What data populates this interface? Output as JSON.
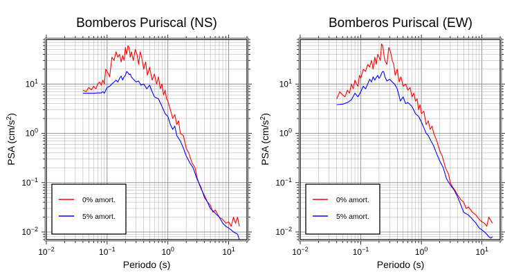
{
  "chart_data": [
    {
      "type": "line",
      "title": "Bomberos Puriscal (NS)",
      "xlabel": "Periodo (s)",
      "ylabel": "PSA (cm/s2)",
      "ylabel_parts": {
        "main": "PSA (cm/s",
        "sup": "2",
        "close": ")"
      },
      "xscale": "log",
      "yscale": "log",
      "xlim": [
        0.01,
        20
      ],
      "ylim": [
        0.007,
        80
      ],
      "x_ticks": [
        {
          "base": "10",
          "exp": "−2"
        },
        {
          "base": "10",
          "exp": "−1"
        },
        {
          "base": "10",
          "exp": "0"
        },
        {
          "base": "10",
          "exp": "1"
        }
      ],
      "y_ticks": [
        {
          "base": "10",
          "exp": "−2"
        },
        {
          "base": "10",
          "exp": "−1"
        },
        {
          "base": "10",
          "exp": "0"
        },
        {
          "base": "10",
          "exp": "1"
        }
      ],
      "grid": true,
      "legend_position": "bottom-left",
      "series": [
        {
          "name": "0% amort.",
          "color": "#ff0000",
          "x": [
            0.04,
            0.045,
            0.05,
            0.055,
            0.06,
            0.065,
            0.07,
            0.075,
            0.08,
            0.085,
            0.09,
            0.095,
            0.1,
            0.11,
            0.12,
            0.13,
            0.14,
            0.15,
            0.16,
            0.17,
            0.18,
            0.19,
            0.2,
            0.21,
            0.22,
            0.23,
            0.24,
            0.25,
            0.27,
            0.29,
            0.31,
            0.33,
            0.35,
            0.37,
            0.4,
            0.43,
            0.46,
            0.5,
            0.55,
            0.6,
            0.65,
            0.7,
            0.75,
            0.8,
            0.85,
            0.9,
            0.95,
            1.0,
            1.1,
            1.2,
            1.3,
            1.4,
            1.5,
            1.6,
            1.8,
            2.0,
            2.2,
            2.5,
            2.8,
            3.0,
            3.3,
            3.6,
            4.0,
            4.5,
            5.0,
            5.5,
            6.0,
            7.0,
            8.0,
            9.0,
            10.0,
            11.0,
            12.0,
            13.0,
            14.0,
            15.0
          ],
          "y": [
            7.5,
            7.0,
            8.5,
            7.6,
            9.0,
            8.0,
            10.0,
            11.0,
            9.5,
            12.0,
            10.0,
            20.0,
            18.0,
            14.0,
            35.0,
            30.0,
            45.0,
            35.0,
            40.0,
            28.0,
            38.0,
            30.0,
            55.0,
            40.0,
            60.0,
            55.0,
            35.0,
            45.0,
            30.0,
            50.0,
            40.0,
            25.0,
            45.0,
            35.0,
            20.0,
            28.0,
            15.0,
            22.0,
            12.0,
            16.0,
            10.0,
            14.0,
            8.0,
            10.0,
            6.0,
            7.5,
            5.0,
            4.5,
            3.0,
            2.0,
            2.4,
            1.5,
            1.8,
            1.0,
            0.9,
            0.5,
            0.4,
            0.25,
            0.2,
            0.13,
            0.09,
            0.07,
            0.055,
            0.04,
            0.035,
            0.025,
            0.028,
            0.02,
            0.018,
            0.015,
            0.016,
            0.013,
            0.02,
            0.015,
            0.02,
            0.013
          ]
        },
        {
          "name": "5% amort.",
          "color": "#0000ff",
          "x": [
            0.04,
            0.05,
            0.06,
            0.07,
            0.08,
            0.085,
            0.09,
            0.1,
            0.11,
            0.12,
            0.13,
            0.14,
            0.15,
            0.16,
            0.17,
            0.18,
            0.19,
            0.2,
            0.21,
            0.22,
            0.23,
            0.24,
            0.25,
            0.27,
            0.3,
            0.33,
            0.36,
            0.4,
            0.45,
            0.5,
            0.55,
            0.6,
            0.7,
            0.8,
            0.9,
            1.0,
            1.1,
            1.2,
            1.3,
            1.4,
            1.6,
            1.8,
            2.0,
            2.3,
            2.6,
            3.0,
            3.5,
            4.0,
            4.5,
            5.0,
            6.0,
            7.0,
            8.0,
            9.0,
            10.0,
            11.0,
            12.0,
            13.0,
            14.0,
            15.0
          ],
          "y": [
            6.5,
            6.5,
            6.5,
            6.6,
            6.6,
            7.0,
            6.5,
            8.5,
            9.0,
            10.0,
            11.0,
            12.0,
            11.0,
            13.0,
            14.5,
            12.0,
            14.0,
            15.0,
            18.0,
            17.0,
            15.5,
            16.0,
            14.0,
            12.5,
            11.0,
            11.5,
            9.5,
            10.0,
            8.0,
            9.5,
            7.0,
            5.5,
            5.0,
            3.5,
            2.5,
            2.2,
            1.5,
            1.2,
            1.4,
            0.9,
            0.7,
            0.5,
            0.35,
            0.25,
            0.2,
            0.12,
            0.08,
            0.05,
            0.04,
            0.03,
            0.024,
            0.02,
            0.015,
            0.013,
            0.012,
            0.011,
            0.01,
            0.0095,
            0.009,
            0.007
          ]
        }
      ]
    },
    {
      "type": "line",
      "title": "Bomberos Puriscal (EW)",
      "xlabel": "Periodo (s)",
      "ylabel": "PSA (cm/s2)",
      "ylabel_parts": {
        "main": "PSA (cm/s",
        "sup": "2",
        "close": ")"
      },
      "xscale": "log",
      "yscale": "log",
      "xlim": [
        0.01,
        20
      ],
      "ylim": [
        0.007,
        80
      ],
      "x_ticks": [
        {
          "base": "10",
          "exp": "−2"
        },
        {
          "base": "10",
          "exp": "−1"
        },
        {
          "base": "10",
          "exp": "0"
        },
        {
          "base": "10",
          "exp": "1"
        }
      ],
      "y_ticks": [
        {
          "base": "10",
          "exp": "−2"
        },
        {
          "base": "10",
          "exp": "−1"
        },
        {
          "base": "10",
          "exp": "0"
        },
        {
          "base": "10",
          "exp": "1"
        }
      ],
      "grid": true,
      "legend_position": "bottom-left",
      "series": [
        {
          "name": "0% amort.",
          "color": "#ff0000",
          "x": [
            0.04,
            0.045,
            0.05,
            0.055,
            0.06,
            0.065,
            0.07,
            0.075,
            0.08,
            0.085,
            0.09,
            0.095,
            0.1,
            0.11,
            0.12,
            0.13,
            0.14,
            0.15,
            0.16,
            0.17,
            0.18,
            0.19,
            0.2,
            0.21,
            0.22,
            0.23,
            0.24,
            0.25,
            0.27,
            0.29,
            0.31,
            0.33,
            0.35,
            0.37,
            0.4,
            0.43,
            0.46,
            0.5,
            0.55,
            0.6,
            0.65,
            0.7,
            0.75,
            0.8,
            0.85,
            0.9,
            0.95,
            1.0,
            1.1,
            1.2,
            1.3,
            1.4,
            1.5,
            1.6,
            1.8,
            2.0,
            2.2,
            2.5,
            2.8,
            3.0,
            3.3,
            3.6,
            4.0,
            4.5,
            5.0,
            5.5,
            6.0,
            7.0,
            8.0,
            9.0,
            10.0,
            11.0,
            12.0,
            13.0,
            14.0,
            15.0
          ],
          "y": [
            5.0,
            7.0,
            6.0,
            5.5,
            7.5,
            6.5,
            10.0,
            8.0,
            12.0,
            10.0,
            9.0,
            15.0,
            13.0,
            20.0,
            18.0,
            25.0,
            22.0,
            30.0,
            20.0,
            35.0,
            25.0,
            40.0,
            35.0,
            30.0,
            65.0,
            60.0,
            40.0,
            30.0,
            25.0,
            55.0,
            45.0,
            30.0,
            25.0,
            15.0,
            20.0,
            11.0,
            14.0,
            9.0,
            10.0,
            7.5,
            8.5,
            5.5,
            6.5,
            4.5,
            5.0,
            3.0,
            3.8,
            2.5,
            2.8,
            1.5,
            1.8,
            1.2,
            1.4,
            1.0,
            0.7,
            0.45,
            0.35,
            0.2,
            0.15,
            0.1,
            0.08,
            0.07,
            0.055,
            0.045,
            0.04,
            0.03,
            0.032,
            0.025,
            0.022,
            0.018,
            0.016,
            0.015,
            0.013,
            0.02,
            0.017,
            0.015
          ]
        },
        {
          "name": "5% amort.",
          "color": "#0000ff",
          "x": [
            0.04,
            0.05,
            0.06,
            0.07,
            0.08,
            0.09,
            0.1,
            0.11,
            0.12,
            0.13,
            0.14,
            0.15,
            0.16,
            0.17,
            0.18,
            0.19,
            0.2,
            0.21,
            0.22,
            0.23,
            0.24,
            0.25,
            0.27,
            0.3,
            0.33,
            0.36,
            0.4,
            0.45,
            0.5,
            0.55,
            0.6,
            0.7,
            0.8,
            0.9,
            1.0,
            1.1,
            1.2,
            1.3,
            1.4,
            1.6,
            1.8,
            2.0,
            2.3,
            2.6,
            3.0,
            3.5,
            4.0,
            4.5,
            5.0,
            6.0,
            7.0,
            8.0,
            9.0,
            10.0,
            11.0,
            12.0,
            13.0,
            14.0,
            15.0
          ],
          "y": [
            3.8,
            3.9,
            4.2,
            4.8,
            6.5,
            5.5,
            7.0,
            9.0,
            8.0,
            10.0,
            12.5,
            11.0,
            14.0,
            12.0,
            13.5,
            15.0,
            13.0,
            14.0,
            16.5,
            18.0,
            17.5,
            14.0,
            11.5,
            12.5,
            11.0,
            10.0,
            8.0,
            4.5,
            5.5,
            4.0,
            4.2,
            3.5,
            2.5,
            2.2,
            1.7,
            1.3,
            1.0,
            0.9,
            0.75,
            0.55,
            0.38,
            0.28,
            0.2,
            0.12,
            0.09,
            0.07,
            0.05,
            0.035,
            0.025,
            0.022,
            0.018,
            0.015,
            0.012,
            0.011,
            0.01,
            0.009,
            0.008,
            0.0075,
            0.008
          ]
        }
      ]
    }
  ]
}
